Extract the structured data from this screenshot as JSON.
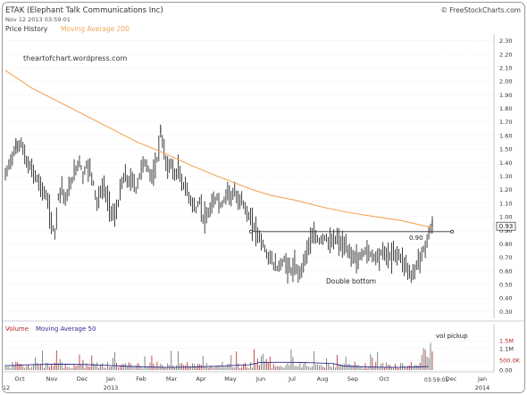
{
  "header": {
    "title": "ETAK (Elephant Talk Communications Inc)",
    "date": "Nov 12 2013 03:59:01",
    "brand": "© FreeStockCharts.com",
    "legend_price": "Price History",
    "legend_ma": "Moving Average 200",
    "watermark": "theartofchart.wordpress.com"
  },
  "colors": {
    "price": "#111111",
    "ma200": "#f2a65a",
    "volume_label": "#b22222",
    "ma50_label": "#2c2c8c",
    "vol_bar": "#6a6a6a",
    "vol_bar_red": "#b22222",
    "grid": "#d9d9d9",
    "resistance": "#333333"
  },
  "chart_data": [
    {
      "type": "bar",
      "subtype": "ohlc-price",
      "ylim": [
        0.25,
        2.35
      ],
      "yticks": [
        "2.30",
        "2.20",
        "2.10",
        "2.00",
        "1.90",
        "1.80",
        "1.70",
        "1.60",
        "1.50",
        "1.40",
        "1.30",
        "1.20",
        "1.10",
        "1.00",
        "0.90",
        "0.80",
        "0.70",
        "0.60",
        "0.50",
        "0.40",
        "0.30"
      ],
      "last_price_label": "0.93",
      "resistance": {
        "value": 0.89,
        "label": "0.90"
      },
      "annotation": "Double bottom",
      "price_keypoints": [
        [
          0,
          1.3
        ],
        [
          6,
          1.42
        ],
        [
          12,
          1.5
        ],
        [
          18,
          1.55
        ],
        [
          24,
          1.4
        ],
        [
          30,
          1.35
        ],
        [
          36,
          1.28
        ],
        [
          42,
          1.2
        ],
        [
          48,
          1.12
        ],
        [
          52,
          0.95
        ],
        [
          56,
          0.88
        ],
        [
          60,
          1.15
        ],
        [
          64,
          1.22
        ],
        [
          68,
          1.12
        ],
        [
          72,
          1.2
        ],
        [
          76,
          1.28
        ],
        [
          80,
          1.35
        ],
        [
          84,
          1.42
        ],
        [
          88,
          1.3
        ],
        [
          92,
          1.38
        ],
        [
          96,
          1.35
        ],
        [
          100,
          1.25
        ],
        [
          104,
          1.1
        ],
        [
          108,
          1.18
        ],
        [
          112,
          1.22
        ],
        [
          116,
          1.12
        ],
        [
          120,
          1.05
        ],
        [
          124,
          1.0
        ],
        [
          128,
          1.1
        ],
        [
          132,
          1.25
        ],
        [
          136,
          1.3
        ],
        [
          140,
          1.25
        ],
        [
          144,
          1.28
        ],
        [
          148,
          1.2
        ],
        [
          152,
          1.3
        ],
        [
          156,
          1.4
        ],
        [
          160,
          1.38
        ],
        [
          164,
          1.32
        ],
        [
          168,
          1.3
        ],
        [
          172,
          1.42
        ],
        [
          176,
          1.62
        ],
        [
          180,
          1.48
        ],
        [
          184,
          1.35
        ],
        [
          188,
          1.4
        ],
        [
          192,
          1.3
        ],
        [
          196,
          1.35
        ],
        [
          200,
          1.25
        ],
        [
          204,
          1.22
        ],
        [
          208,
          1.15
        ],
        [
          212,
          1.1
        ],
        [
          216,
          1.05
        ],
        [
          220,
          1.12
        ],
        [
          224,
          1.0
        ],
        [
          228,
          0.98
        ],
        [
          232,
          1.05
        ],
        [
          236,
          1.1
        ],
        [
          240,
          1.15
        ],
        [
          244,
          1.08
        ],
        [
          248,
          1.12
        ],
        [
          252,
          1.2
        ],
        [
          256,
          1.15
        ],
        [
          260,
          1.18
        ],
        [
          264,
          1.1
        ],
        [
          268,
          1.15
        ],
        [
          272,
          1.05
        ],
        [
          276,
          1.0
        ],
        [
          280,
          0.95
        ],
        [
          284,
          0.9
        ],
        [
          288,
          0.85
        ],
        [
          292,
          0.8
        ],
        [
          296,
          0.72
        ],
        [
          300,
          0.7
        ],
        [
          304,
          0.65
        ],
        [
          308,
          0.62
        ],
        [
          312,
          0.65
        ],
        [
          316,
          0.68
        ],
        [
          320,
          0.63
        ],
        [
          324,
          0.6
        ],
        [
          328,
          0.63
        ],
        [
          332,
          0.58
        ],
        [
          336,
          0.62
        ],
        [
          340,
          0.7
        ],
        [
          344,
          0.8
        ],
        [
          348,
          0.84
        ],
        [
          352,
          0.85
        ],
        [
          356,
          0.82
        ],
        [
          360,
          0.85
        ],
        [
          364,
          0.84
        ],
        [
          368,
          0.8
        ],
        [
          372,
          0.82
        ],
        [
          376,
          0.84
        ],
        [
          380,
          0.8
        ],
        [
          384,
          0.78
        ],
        [
          388,
          0.75
        ],
        [
          392,
          0.72
        ],
        [
          396,
          0.7
        ],
        [
          400,
          0.68
        ],
        [
          404,
          0.72
        ],
        [
          408,
          0.75
        ],
        [
          412,
          0.73
        ],
        [
          416,
          0.72
        ],
        [
          420,
          0.7
        ],
        [
          424,
          0.72
        ],
        [
          428,
          0.74
        ],
        [
          432,
          0.72
        ],
        [
          436,
          0.7
        ],
        [
          440,
          0.72
        ],
        [
          444,
          0.73
        ],
        [
          448,
          0.7
        ],
        [
          452,
          0.66
        ],
        [
          456,
          0.62
        ],
        [
          460,
          0.56
        ],
        [
          464,
          0.6
        ],
        [
          468,
          0.68
        ],
        [
          472,
          0.72
        ],
        [
          476,
          0.78
        ],
        [
          480,
          0.88
        ],
        [
          484,
          0.93
        ]
      ],
      "ma200": [
        [
          0,
          2.08
        ],
        [
          30,
          1.95
        ],
        [
          60,
          1.85
        ],
        [
          90,
          1.75
        ],
        [
          120,
          1.65
        ],
        [
          150,
          1.55
        ],
        [
          180,
          1.47
        ],
        [
          210,
          1.38
        ],
        [
          240,
          1.3
        ],
        [
          260,
          1.25
        ],
        [
          280,
          1.2
        ],
        [
          300,
          1.16
        ],
        [
          330,
          1.12
        ],
        [
          360,
          1.07
        ],
        [
          390,
          1.03
        ],
        [
          420,
          1.0
        ],
        [
          450,
          0.97
        ],
        [
          470,
          0.94
        ],
        [
          484,
          0.92
        ]
      ]
    },
    {
      "type": "bar",
      "subtype": "volume",
      "yticks": [
        "1.5M",
        "1.1M",
        "500.0K",
        "0.00"
      ],
      "annotation": "vol pickup",
      "legend_volume": "Volume",
      "legend_ma": "Moving Average 50"
    }
  ],
  "xaxis": {
    "labels": [
      {
        "text": "Oct",
        "x": 22
      },
      {
        "text": "Nov",
        "x": 58
      },
      {
        "text": "Dec",
        "x": 92
      },
      {
        "text": "Jan",
        "x": 124
      },
      {
        "text": "Feb",
        "x": 158
      },
      {
        "text": "Mar",
        "x": 192
      },
      {
        "text": "Apr",
        "x": 225
      },
      {
        "text": "May",
        "x": 258
      },
      {
        "text": "Jun",
        "x": 292
      },
      {
        "text": "Jul",
        "x": 327
      },
      {
        "text": "Aug",
        "x": 361
      },
      {
        "text": "Sep",
        "x": 395
      },
      {
        "text": "Oct",
        "x": 430
      },
      {
        "text": "Dec",
        "x": 505
      },
      {
        "text": "Jan",
        "x": 540
      }
    ],
    "year_labels": [
      {
        "text": "12",
        "x": 7
      },
      {
        "text": "2013",
        "x": 124
      },
      {
        "text": "2014",
        "x": 540
      }
    ],
    "time_label": "03:59:01"
  }
}
